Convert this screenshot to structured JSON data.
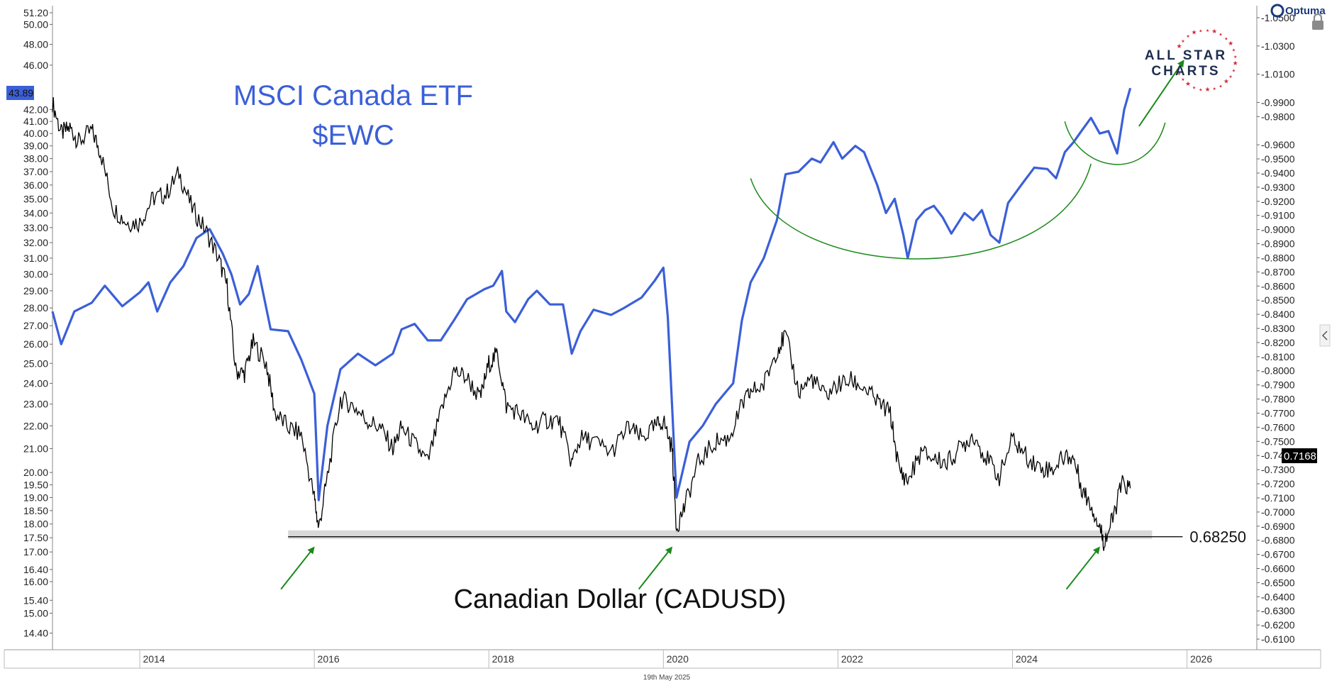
{
  "chart_data": {
    "type": "line",
    "x_axis": {
      "tick_labels": [
        "2014",
        "2016",
        "2018",
        "2020",
        "2022",
        "2024",
        "2026"
      ],
      "range": [
        2013.0,
        2026.8
      ]
    },
    "y_axis_left": {
      "scale": "log",
      "range": [
        14.0,
        51.5
      ],
      "tick_labels": [
        "51.20",
        "50.00",
        "48.00",
        "46.00",
        "42.00",
        "41.00",
        "40.00",
        "39.00",
        "38.00",
        "37.00",
        "36.00",
        "35.00",
        "34.00",
        "33.00",
        "32.00",
        "31.00",
        "30.00",
        "29.00",
        "28.00",
        "27.00",
        "26.00",
        "25.00",
        "24.00",
        "23.00",
        "22.00",
        "21.00",
        "20.00",
        "19.50",
        "19.00",
        "18.50",
        "18.00",
        "17.50",
        "17.00",
        "16.40",
        "16.00",
        "15.40",
        "15.00",
        "14.40"
      ],
      "current_value_label": "43.89"
    },
    "y_axis_right": {
      "scale": "linear",
      "range": [
        0.6045,
        1.0555
      ],
      "tick_labels": [
        "1.0500",
        "1.0300",
        "1.0100",
        "0.9900",
        "0.9800",
        "0.9600",
        "0.9500",
        "0.9400",
        "0.9300",
        "0.9200",
        "0.9100",
        "0.9000",
        "0.8900",
        "0.8800",
        "0.8700",
        "0.8600",
        "0.8500",
        "0.8400",
        "0.8300",
        "0.8200",
        "0.8100",
        "0.8000",
        "0.7900",
        "0.7800",
        "0.7700",
        "0.7600",
        "0.7500",
        "0.7400",
        "0.7300",
        "0.7200",
        "0.7100",
        "0.7000",
        "0.6900",
        "0.6800",
        "0.6700",
        "0.6600",
        "0.6500",
        "0.6400",
        "0.6300",
        "0.6200",
        "0.6100"
      ],
      "current_value_label": "0.7168"
    },
    "series": [
      {
        "name": "MSCI Canada ETF $EWC",
        "color": "#3b5fd8",
        "axis": "left",
        "points": [
          [
            2013.0,
            27.8
          ],
          [
            2013.1,
            26.0
          ],
          [
            2013.25,
            27.8
          ],
          [
            2013.45,
            28.3
          ],
          [
            2013.6,
            29.3
          ],
          [
            2013.8,
            28.1
          ],
          [
            2014.0,
            28.9
          ],
          [
            2014.1,
            29.5
          ],
          [
            2014.2,
            27.8
          ],
          [
            2014.35,
            29.5
          ],
          [
            2014.5,
            30.5
          ],
          [
            2014.65,
            32.3
          ],
          [
            2014.8,
            32.9
          ],
          [
            2014.95,
            31.3
          ],
          [
            2015.05,
            30.0
          ],
          [
            2015.15,
            28.2
          ],
          [
            2015.25,
            28.8
          ],
          [
            2015.35,
            30.5
          ],
          [
            2015.5,
            26.8
          ],
          [
            2015.7,
            26.7
          ],
          [
            2015.85,
            25.2
          ],
          [
            2016.0,
            23.5
          ],
          [
            2016.05,
            18.9
          ],
          [
            2016.15,
            22.0
          ],
          [
            2016.3,
            24.7
          ],
          [
            2016.5,
            25.5
          ],
          [
            2016.7,
            24.9
          ],
          [
            2016.9,
            25.5
          ],
          [
            2017.0,
            26.8
          ],
          [
            2017.15,
            27.1
          ],
          [
            2017.3,
            26.2
          ],
          [
            2017.45,
            26.2
          ],
          [
            2017.6,
            27.3
          ],
          [
            2017.75,
            28.5
          ],
          [
            2017.95,
            29.1
          ],
          [
            2018.05,
            29.3
          ],
          [
            2018.15,
            30.2
          ],
          [
            2018.2,
            27.8
          ],
          [
            2018.3,
            27.2
          ],
          [
            2018.45,
            28.5
          ],
          [
            2018.55,
            29.0
          ],
          [
            2018.7,
            28.2
          ],
          [
            2018.85,
            28.2
          ],
          [
            2018.95,
            25.5
          ],
          [
            2019.05,
            26.7
          ],
          [
            2019.2,
            27.9
          ],
          [
            2019.4,
            27.6
          ],
          [
            2019.55,
            28.0
          ],
          [
            2019.75,
            28.6
          ],
          [
            2019.9,
            29.6
          ],
          [
            2020.0,
            30.4
          ],
          [
            2020.05,
            27.5
          ],
          [
            2020.15,
            19.0
          ],
          [
            2020.3,
            21.3
          ],
          [
            2020.45,
            22.0
          ],
          [
            2020.6,
            23.0
          ],
          [
            2020.7,
            23.5
          ],
          [
            2020.8,
            24.0
          ],
          [
            2020.9,
            27.3
          ],
          [
            2021.0,
            29.5
          ],
          [
            2021.15,
            31.0
          ],
          [
            2021.3,
            33.5
          ],
          [
            2021.4,
            36.8
          ],
          [
            2021.55,
            37.0
          ],
          [
            2021.7,
            38.0
          ],
          [
            2021.8,
            37.7
          ],
          [
            2021.95,
            39.3
          ],
          [
            2022.05,
            38.0
          ],
          [
            2022.2,
            39.0
          ],
          [
            2022.3,
            38.5
          ],
          [
            2022.45,
            36.0
          ],
          [
            2022.55,
            34.0
          ],
          [
            2022.65,
            35.0
          ],
          [
            2022.75,
            32.5
          ],
          [
            2022.8,
            31.0
          ],
          [
            2022.9,
            33.5
          ],
          [
            2023.0,
            34.2
          ],
          [
            2023.1,
            34.5
          ],
          [
            2023.2,
            33.7
          ],
          [
            2023.3,
            32.6
          ],
          [
            2023.45,
            34.0
          ],
          [
            2023.55,
            33.5
          ],
          [
            2023.65,
            34.2
          ],
          [
            2023.75,
            32.5
          ],
          [
            2023.85,
            32.0
          ],
          [
            2023.95,
            34.7
          ],
          [
            2024.1,
            36.0
          ],
          [
            2024.25,
            37.3
          ],
          [
            2024.4,
            37.2
          ],
          [
            2024.5,
            36.5
          ],
          [
            2024.6,
            38.5
          ],
          [
            2024.7,
            39.3
          ],
          [
            2024.8,
            40.3
          ],
          [
            2024.9,
            41.3
          ],
          [
            2025.0,
            40.0
          ],
          [
            2025.1,
            40.2
          ],
          [
            2025.2,
            38.4
          ],
          [
            2025.28,
            42.0
          ],
          [
            2025.35,
            43.89
          ]
        ]
      },
      {
        "name": "Canadian Dollar (CADUSD)",
        "color": "#000000",
        "axis": "right",
        "points": [
          [
            2013.0,
            0.99
          ],
          [
            2013.1,
            0.968
          ],
          [
            2013.2,
            0.972
          ],
          [
            2013.3,
            0.962
          ],
          [
            2013.45,
            0.97
          ],
          [
            2013.55,
            0.955
          ],
          [
            2013.7,
            0.915
          ],
          [
            2013.85,
            0.905
          ],
          [
            2014.0,
            0.905
          ],
          [
            2014.15,
            0.922
          ],
          [
            2014.3,
            0.925
          ],
          [
            2014.45,
            0.94
          ],
          [
            2014.6,
            0.915
          ],
          [
            2014.75,
            0.9
          ],
          [
            2014.9,
            0.88
          ],
          [
            2015.0,
            0.86
          ],
          [
            2015.1,
            0.8
          ],
          [
            2015.2,
            0.798
          ],
          [
            2015.3,
            0.82
          ],
          [
            2015.45,
            0.805
          ],
          [
            2015.55,
            0.77
          ],
          [
            2015.7,
            0.76
          ],
          [
            2015.85,
            0.755
          ],
          [
            2016.0,
            0.71
          ],
          [
            2016.05,
            0.688
          ],
          [
            2016.15,
            0.725
          ],
          [
            2016.3,
            0.78
          ],
          [
            2016.45,
            0.775
          ],
          [
            2016.6,
            0.765
          ],
          [
            2016.75,
            0.76
          ],
          [
            2016.9,
            0.745
          ],
          [
            2017.0,
            0.76
          ],
          [
            2017.15,
            0.748
          ],
          [
            2017.3,
            0.735
          ],
          [
            2017.45,
            0.77
          ],
          [
            2017.6,
            0.8
          ],
          [
            2017.75,
            0.795
          ],
          [
            2017.9,
            0.78
          ],
          [
            2018.0,
            0.805
          ],
          [
            2018.1,
            0.812
          ],
          [
            2018.2,
            0.775
          ],
          [
            2018.35,
            0.77
          ],
          [
            2018.5,
            0.76
          ],
          [
            2018.65,
            0.765
          ],
          [
            2018.8,
            0.765
          ],
          [
            2018.95,
            0.735
          ],
          [
            2019.05,
            0.752
          ],
          [
            2019.2,
            0.75
          ],
          [
            2019.4,
            0.742
          ],
          [
            2019.6,
            0.76
          ],
          [
            2019.75,
            0.752
          ],
          [
            2019.9,
            0.76
          ],
          [
            2020.0,
            0.765
          ],
          [
            2020.1,
            0.745
          ],
          [
            2020.15,
            0.689
          ],
          [
            2020.25,
            0.705
          ],
          [
            2020.4,
            0.735
          ],
          [
            2020.6,
            0.75
          ],
          [
            2020.75,
            0.752
          ],
          [
            2020.9,
            0.775
          ],
          [
            2021.0,
            0.785
          ],
          [
            2021.15,
            0.79
          ],
          [
            2021.3,
            0.815
          ],
          [
            2021.4,
            0.825
          ],
          [
            2021.55,
            0.785
          ],
          [
            2021.7,
            0.795
          ],
          [
            2021.85,
            0.782
          ],
          [
            2022.0,
            0.79
          ],
          [
            2022.15,
            0.793
          ],
          [
            2022.3,
            0.788
          ],
          [
            2022.45,
            0.778
          ],
          [
            2022.6,
            0.77
          ],
          [
            2022.7,
            0.73
          ],
          [
            2022.8,
            0.722
          ],
          [
            2022.95,
            0.742
          ],
          [
            2023.1,
            0.738
          ],
          [
            2023.25,
            0.735
          ],
          [
            2023.4,
            0.745
          ],
          [
            2023.55,
            0.755
          ],
          [
            2023.7,
            0.738
          ],
          [
            2023.85,
            0.725
          ],
          [
            2024.0,
            0.752
          ],
          [
            2024.15,
            0.74
          ],
          [
            2024.3,
            0.732
          ],
          [
            2024.45,
            0.73
          ],
          [
            2024.6,
            0.74
          ],
          [
            2024.7,
            0.738
          ],
          [
            2024.8,
            0.716
          ],
          [
            2024.9,
            0.705
          ],
          [
            2025.0,
            0.69
          ],
          [
            2025.05,
            0.678
          ],
          [
            2025.15,
            0.695
          ],
          [
            2025.25,
            0.72
          ],
          [
            2025.35,
            0.7168
          ]
        ]
      }
    ],
    "annotations": {
      "ewc_title_line1": "MSCI Canada ETF",
      "ewc_title_line2": "$EWC",
      "cad_title": "Canadian Dollar (CADUSD)",
      "support_level_label": "0.68250",
      "support_level_value": 0.6825,
      "support_band": [
        0.6815,
        0.684
      ],
      "support_x_range": [
        2015.7,
        2025.6
      ],
      "up_arrows_at": [
        2016.0,
        2020.1,
        2025.0
      ],
      "breakout_arrow": true,
      "base_pattern": "cup and handle (rounded base)"
    },
    "footer_date": "19th May 2025",
    "grid": false,
    "legend": "none"
  },
  "branding": {
    "logo_line1": "ALL STAR",
    "logo_line2": "CHARTS",
    "platform": "Optuma"
  },
  "colors": {
    "ewc_line": "#3b5fd8",
    "cad_line": "#000000",
    "annotations": "#1a8a1a",
    "support_band": "#d8d8d8",
    "logo_stars": "#d42a3a"
  },
  "icons": [
    "lock-icon",
    "collapse-arrow-icon",
    "optuma-logo-icon"
  ]
}
